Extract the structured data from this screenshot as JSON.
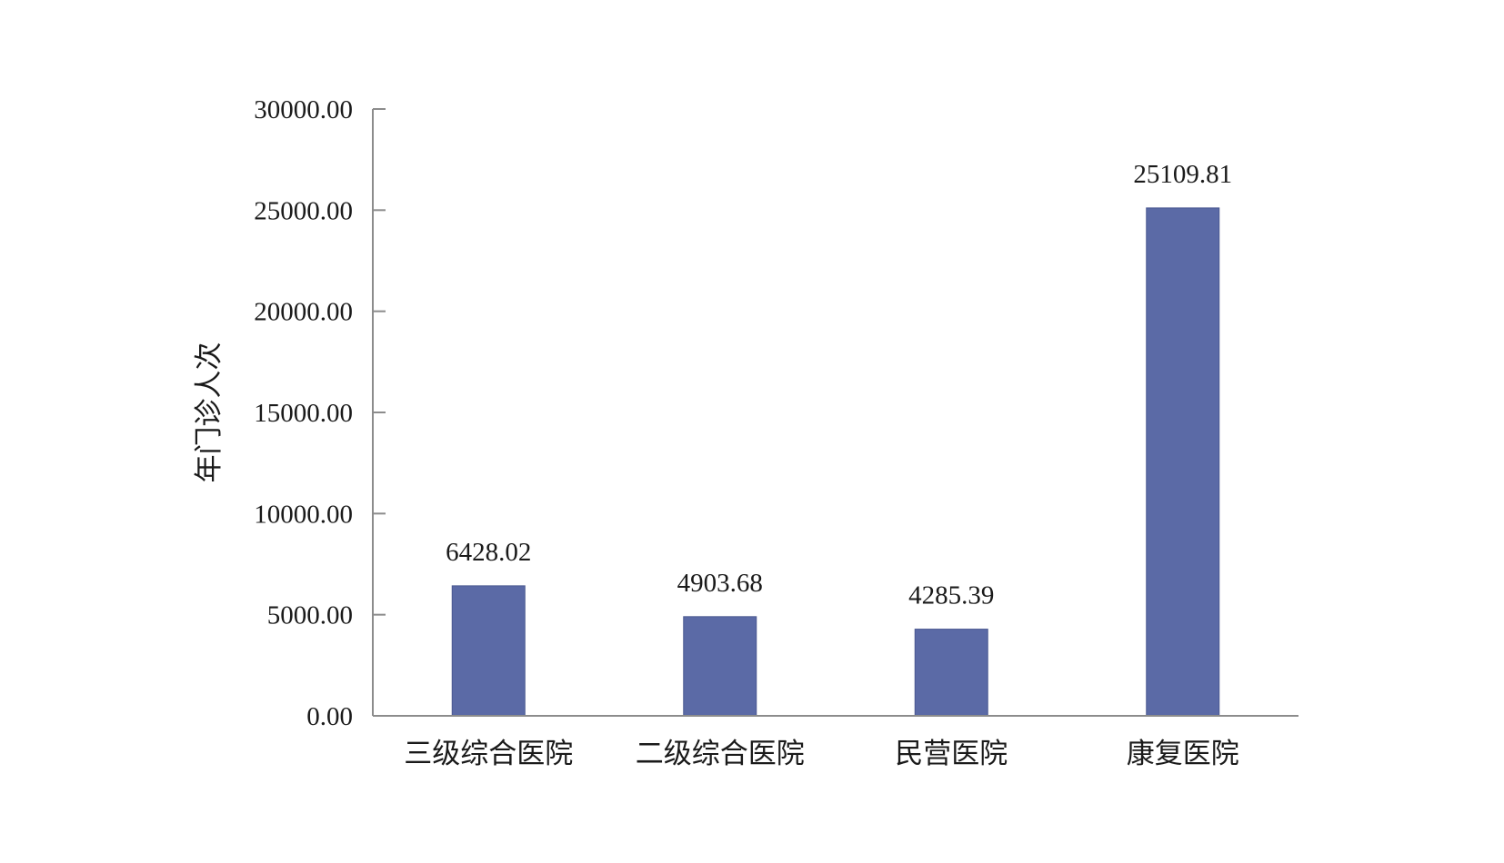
{
  "chart_data": {
    "type": "bar",
    "title": "",
    "xlabel": "",
    "ylabel": "年门诊人次",
    "categories": [
      "三级综合医院",
      "二级综合医院",
      "民营医院",
      "康复医院"
    ],
    "values": [
      6428.02,
      4903.68,
      4285.39,
      25109.81
    ],
    "data_labels": [
      "6428.02",
      "4903.68",
      "4285.39",
      "25109.81"
    ],
    "yticks": [
      "0.00",
      "5000.00",
      "10000.00",
      "15000.00",
      "20000.00",
      "25000.00",
      "30000.00"
    ],
    "ylim": [
      0,
      30000
    ],
    "grid": false,
    "legend": "none",
    "bar_color": "#5b6aa6",
    "axis_color": "#8c8c8c"
  }
}
